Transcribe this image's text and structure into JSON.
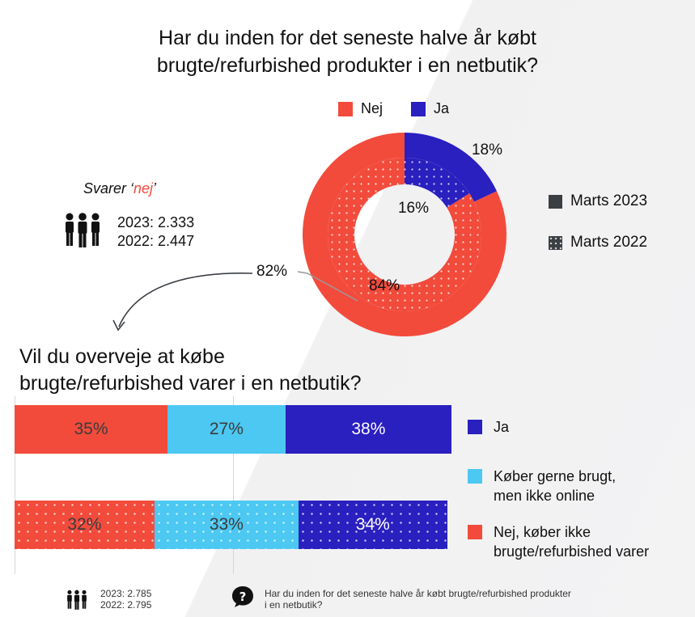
{
  "title": "Har du inden for det seneste halve år købt\nbrugte/refurbished produkter i en netbutik?",
  "colors": {
    "nej": "#f24b3c",
    "ja": "#2a1fbf",
    "light_blue": "#4cc8f2",
    "dark": "#3b3f44"
  },
  "legend_top": [
    {
      "label": "Nej",
      "color": "#f24b3c"
    },
    {
      "label": "Ja",
      "color": "#2a1fbf"
    }
  ],
  "svarer_prefix": "Svarer ‘",
  "svarer_nej": "nej",
  "svarer_suffix": "’",
  "count_2023": "2023: 2.333",
  "count_2022": "2022: 2.447",
  "period_legend": [
    {
      "label": "Marts 2023",
      "style": "solid"
    },
    {
      "label": "Marts 2022",
      "style": "dotted"
    }
  ],
  "title2": "Vil du overveje at købe\nbrugte/refurbished varer i en netbutik?",
  "bar_legend": [
    {
      "label": "Ja",
      "color": "#2a1fbf"
    },
    {
      "label": "Køber gerne brugt,\nmen ikke online",
      "color": "#4cc8f2"
    },
    {
      "label": "Nej, køber ikke\nbrugte/refurbished varer",
      "color": "#f24b3c"
    }
  ],
  "footer_2023": "2023: 2.785",
  "footer_2022": "2022: 2.795",
  "footer_question": "Har du inden for det seneste halve år købt brugte/refurbished produkter\ni en netbutik?",
  "chart_data": [
    {
      "type": "pie",
      "subtype": "donut",
      "title": "Har du inden for det seneste halve år købt brugte/refurbished produkter i en netbutik?",
      "categories": [
        "Nej",
        "Ja"
      ],
      "series": [
        {
          "name": "Marts 2023",
          "values": [
            82,
            18
          ],
          "labels": [
            "82%",
            "18%"
          ]
        },
        {
          "name": "Marts 2022",
          "values": [
            84,
            16
          ],
          "labels": [
            "84%",
            "16%"
          ]
        }
      ]
    },
    {
      "type": "bar",
      "orientation": "horizontal-stacked",
      "title": "Vil du overveje at købe brugte/refurbished varer i en netbutik?",
      "categories": [
        "Marts 2023",
        "Marts 2022"
      ],
      "series": [
        {
          "name": "Nej, køber ikke brugte/refurbished varer",
          "values": [
            35,
            32
          ],
          "labels": [
            "35%",
            "32%"
          ]
        },
        {
          "name": "Køber gerne brugt, men ikke online",
          "values": [
            27,
            33
          ],
          "labels": [
            "27%",
            "33%"
          ]
        },
        {
          "name": "Ja",
          "values": [
            38,
            34
          ],
          "labels": [
            "38%",
            "34%"
          ]
        }
      ]
    }
  ]
}
